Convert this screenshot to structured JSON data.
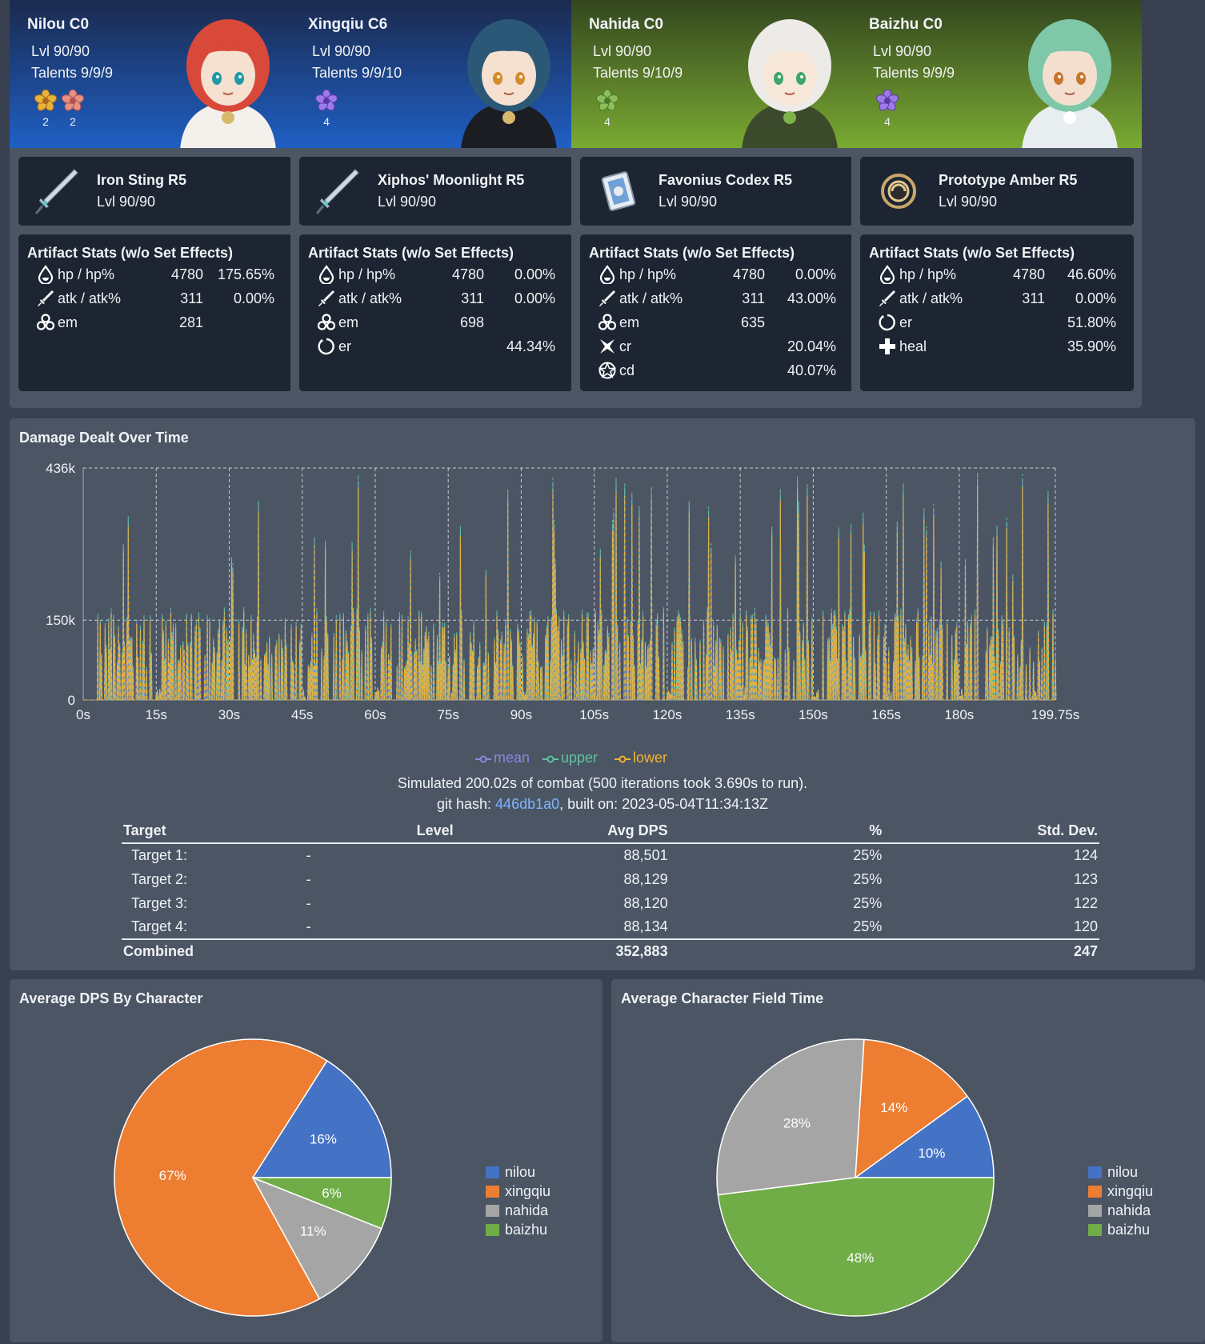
{
  "characters": [
    {
      "name": "Nilou C0",
      "level": "Lvl 90/90",
      "talents": "Talents 9/9/9",
      "sets": [
        {
          "icon": "gilded-dreams-flower-icon",
          "count": "2"
        },
        {
          "icon": "tenacity-flower-icon",
          "count": "2"
        }
      ],
      "weapon": {
        "name": "Iron Sting R5",
        "level": "Lvl 90/90",
        "icon": "sword-icon"
      },
      "stats_title": "Artifact Stats (w/o Set Effects)",
      "stats": [
        {
          "icon": "hp-drop-icon",
          "label": "hp / hp%",
          "flat": "4780",
          "pct": "175.65%"
        },
        {
          "icon": "atk-sword-icon",
          "label": "atk / atk%",
          "flat": "311",
          "pct": "0.00%"
        },
        {
          "icon": "em-icon",
          "label": "em",
          "flat": "281",
          "pct": ""
        }
      ]
    },
    {
      "name": "Xingqiu C6",
      "level": "Lvl 90/90",
      "talents": "Talents 9/9/10",
      "sets": [
        {
          "icon": "emblem-flower-icon",
          "count": "4"
        }
      ],
      "weapon": {
        "name": "Xiphos' Moonlight R5",
        "level": "Lvl 90/90",
        "icon": "sword-icon"
      },
      "stats_title": "Artifact Stats (w/o Set Effects)",
      "stats": [
        {
          "icon": "hp-drop-icon",
          "label": "hp / hp%",
          "flat": "4780",
          "pct": "0.00%"
        },
        {
          "icon": "atk-sword-icon",
          "label": "atk / atk%",
          "flat": "311",
          "pct": "0.00%"
        },
        {
          "icon": "em-icon",
          "label": "em",
          "flat": "698",
          "pct": ""
        },
        {
          "icon": "er-ring-icon",
          "label": "er",
          "flat": "",
          "pct": "44.34%"
        }
      ]
    },
    {
      "name": "Nahida C0",
      "level": "Lvl 90/90",
      "talents": "Talents 9/10/9",
      "sets": [
        {
          "icon": "deepwood-flower-icon",
          "count": "4"
        }
      ],
      "weapon": {
        "name": "Favonius Codex R5",
        "level": "Lvl 90/90",
        "icon": "catalyst-book-icon"
      },
      "stats_title": "Artifact Stats (w/o Set Effects)",
      "stats": [
        {
          "icon": "hp-drop-icon",
          "label": "hp / hp%",
          "flat": "4780",
          "pct": "0.00%"
        },
        {
          "icon": "atk-sword-icon",
          "label": "atk / atk%",
          "flat": "311",
          "pct": "43.00%"
        },
        {
          "icon": "em-icon",
          "label": "em",
          "flat": "635",
          "pct": ""
        },
        {
          "icon": "crit-rate-icon",
          "label": "cr",
          "flat": "",
          "pct": "20.04%"
        },
        {
          "icon": "crit-dmg-icon",
          "label": "cd",
          "flat": "",
          "pct": "40.07%"
        }
      ]
    },
    {
      "name": "Baizhu C0",
      "level": "Lvl 90/90",
      "talents": "Talents 9/9/9",
      "sets": [
        {
          "icon": "emblem-flower-icon",
          "count": "4"
        }
      ],
      "weapon": {
        "name": "Prototype Amber R5",
        "level": "Lvl 90/90",
        "icon": "catalyst-orb-icon"
      },
      "stats_title": "Artifact Stats (w/o Set Effects)",
      "stats": [
        {
          "icon": "hp-drop-icon",
          "label": "hp / hp%",
          "flat": "4780",
          "pct": "46.60%"
        },
        {
          "icon": "atk-sword-icon",
          "label": "atk / atk%",
          "flat": "311",
          "pct": "0.00%"
        },
        {
          "icon": "er-ring-icon",
          "label": "er",
          "flat": "",
          "pct": "51.80%"
        },
        {
          "icon": "heal-cross-icon",
          "label": "heal",
          "flat": "",
          "pct": "35.90%"
        }
      ]
    }
  ],
  "damage_panel": {
    "title": "Damage Dealt Over Time",
    "summary": "Simulated 200.02s of combat (500 iterations took 3.690s to run).",
    "hash_prefix": "git hash: ",
    "hash": "446db1a0",
    "built": ", built on: 2023-05-04T11:34:13Z"
  },
  "dps_table": {
    "headers": [
      "Target",
      "Level",
      "Avg DPS",
      "%",
      "Std. Dev."
    ],
    "rows": [
      [
        "Target 1:",
        "-",
        "88,501",
        "25%",
        "124"
      ],
      [
        "Target 2:",
        "-",
        "88,129",
        "25%",
        "123"
      ],
      [
        "Target 3:",
        "-",
        "88,120",
        "25%",
        "122"
      ],
      [
        "Target 4:",
        "-",
        "88,134",
        "25%",
        "120"
      ]
    ],
    "combined": [
      "Combined",
      "",
      "352,883",
      "",
      "247"
    ]
  },
  "colors": {
    "nilou": "#4472c4",
    "xingqiu": "#ed7d31",
    "nahida": "#a5a5a5",
    "baizhu": "#70ad47",
    "mean": "#8c86e0",
    "upper": "#5fc3a0",
    "lower": "#f2b233",
    "card_blue_top": "#1b2a4e",
    "card_blue_bottom": "#1f5fc4",
    "card_green_top": "#33461f",
    "card_green_bottom": "#7aaa32"
  },
  "chart_data": [
    {
      "type": "line",
      "title": "Damage Dealt Over Time",
      "xlabel": "",
      "ylabel": "",
      "x_ticks": [
        "0s",
        "15s",
        "30s",
        "45s",
        "60s",
        "75s",
        "90s",
        "105s",
        "120s",
        "135s",
        "150s",
        "165s",
        "180s",
        "199.75s"
      ],
      "x_tick_values": [
        0,
        15,
        30,
        45,
        60,
        75,
        90,
        105,
        120,
        135,
        150,
        165,
        180,
        199.75
      ],
      "y_ticks": [
        "0",
        "150k",
        "436k"
      ],
      "y_tick_values": [
        0,
        150000,
        436000
      ],
      "xlim": [
        0,
        199.75
      ],
      "ylim": [
        0,
        436000
      ],
      "legend": [
        "mean",
        "upper",
        "lower"
      ],
      "series": [
        {
          "name": "mean",
          "note": "dense spiky damage series, values approximated by generator"
        },
        {
          "name": "upper",
          "note": "dense spiky damage series, values approximated by generator"
        },
        {
          "name": "lower",
          "note": "dense spiky damage series, values approximated by generator"
        }
      ]
    },
    {
      "type": "pie",
      "title": "Average DPS By Character",
      "labels": [
        "nilou",
        "xingqiu",
        "nahida",
        "baizhu"
      ],
      "values": [
        16,
        67,
        11,
        6
      ],
      "value_labels": [
        "16%",
        "67%",
        "11%",
        "6%"
      ]
    },
    {
      "type": "pie",
      "title": "Average Character Field Time",
      "labels": [
        "nilou",
        "xingqiu",
        "nahida",
        "baizhu"
      ],
      "values": [
        10,
        14,
        28,
        48
      ],
      "value_labels": [
        "10%",
        "14%",
        "28%",
        "48%"
      ]
    }
  ]
}
